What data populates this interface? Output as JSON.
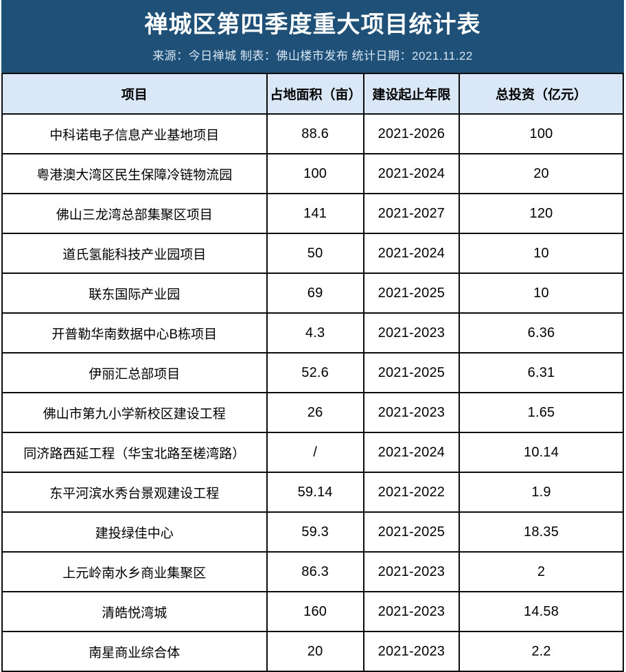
{
  "banner": {
    "title": "禅城区第四季度重大项目统计表",
    "subtitle": "来源：今日禅城 制表：佛山楼市发布 统计日期：2021.11.22",
    "source_label": "来源：今日禅城",
    "producer_label": "制表：佛山楼市发布",
    "stat_date_label": "统计日期：2021.11.22",
    "bg_color": "#1F5078",
    "title_color": "#FFFFFF",
    "subtitle_color": "#D8E6F2"
  },
  "table": {
    "header_bg_color": "#D9E7F6",
    "border_color": "#0B0B0B",
    "headers": [
      "项目",
      "占地面积（亩）",
      "建设起止年限",
      "总投资（亿元）"
    ],
    "rows": [
      {
        "project": "中科诺电子信息产业基地项目",
        "area": "88.6",
        "period": "2021-2026",
        "investment": "100"
      },
      {
        "project": "粤港澳大湾区民生保障冷链物流园",
        "area": "100",
        "period": "2021-2024",
        "investment": "20"
      },
      {
        "project": "佛山三龙湾总部集聚区项目",
        "area": "141",
        "period": "2021-2027",
        "investment": "120"
      },
      {
        "project": "道氏氢能科技产业园项目",
        "area": "50",
        "period": "2021-2024",
        "investment": "10"
      },
      {
        "project": "联东国际产业园",
        "area": "69",
        "period": "2021-2025",
        "investment": "10"
      },
      {
        "project": "开普勒华南数据中心B栋项目",
        "area": "4.3",
        "period": "2021-2023",
        "investment": "6.36"
      },
      {
        "project": "伊丽汇总部项目",
        "area": "52.6",
        "period": "2021-2025",
        "investment": "6.31"
      },
      {
        "project": "佛山市第九小学新校区建设工程",
        "area": "26",
        "period": "2021-2023",
        "investment": "1.65"
      },
      {
        "project": "同济路西延工程（华宝北路至槎湾路）",
        "area": "/",
        "period": "2021-2024",
        "investment": "10.14"
      },
      {
        "project": "东平河滨水秀台景观建设工程",
        "area": "59.14",
        "period": "2021-2022",
        "investment": "1.9"
      },
      {
        "project": "建投绿佳中心",
        "area": "59.3",
        "period": "2021-2025",
        "investment": "18.35"
      },
      {
        "project": "上元岭南水乡商业集聚区",
        "area": "86.3",
        "period": "2021-2023",
        "investment": "2"
      },
      {
        "project": "清皓悦湾城",
        "area": "160",
        "period": "2021-2023",
        "investment": "14.58"
      },
      {
        "project": "南星商业综合体",
        "area": "20",
        "period": "2021-2023",
        "investment": "2.2"
      }
    ]
  },
  "chart_data": {
    "type": "table",
    "title": "禅城区第四季度重大项目统计表",
    "subtitle": "来源：今日禅城 制表：佛山楼市发布 统计日期：2021.11.22",
    "columns": [
      "项目",
      "占地面积（亩）",
      "建设起止年限",
      "总投资（亿元）"
    ],
    "rows": [
      [
        "中科诺电子信息产业基地项目",
        "88.6",
        "2021-2026",
        "100"
      ],
      [
        "粤港澳大湾区民生保障冷链物流园",
        "100",
        "2021-2024",
        "20"
      ],
      [
        "佛山三龙湾总部集聚区项目",
        "141",
        "2021-2027",
        "120"
      ],
      [
        "道氏氢能科技产业园项目",
        "50",
        "2021-2024",
        "10"
      ],
      [
        "联东国际产业园",
        "69",
        "2021-2025",
        "10"
      ],
      [
        "开普勒华南数据中心B栋项目",
        "4.3",
        "2021-2023",
        "6.36"
      ],
      [
        "伊丽汇总部项目",
        "52.6",
        "2021-2025",
        "6.31"
      ],
      [
        "佛山市第九小学新校区建设工程",
        "26",
        "2021-2023",
        "1.65"
      ],
      [
        "同济路西延工程（华宝北路至槎湾路）",
        "/",
        "2021-2024",
        "10.14"
      ],
      [
        "东平河滨水秀台景观建设工程",
        "59.14",
        "2021-2022",
        "1.9"
      ],
      [
        "建投绿佳中心",
        "59.3",
        "2021-2025",
        "18.35"
      ],
      [
        "上元岭南水乡商业集聚区",
        "86.3",
        "2021-2023",
        "2"
      ],
      [
        "清皓悦湾城",
        "160",
        "2021-2023",
        "14.58"
      ],
      [
        "南星商业综合体",
        "20",
        "2021-2023",
        "2.2"
      ]
    ]
  }
}
